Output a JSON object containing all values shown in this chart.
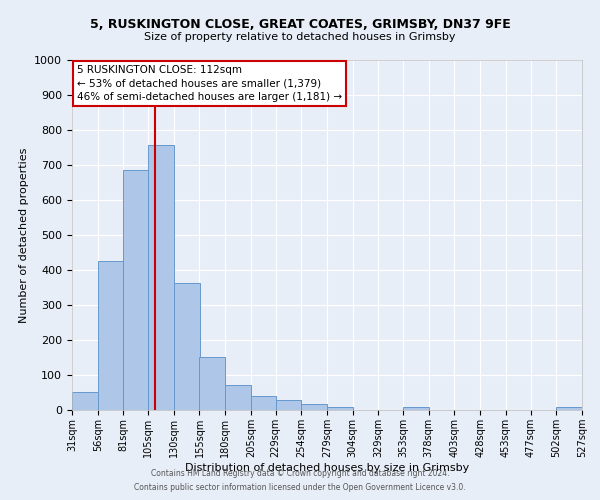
{
  "title": "5, RUSKINGTON CLOSE, GREAT COATES, GRIMSBY, DN37 9FE",
  "subtitle": "Size of property relative to detached houses in Grimsby",
  "xlabel": "Distribution of detached houses by size in Grimsby",
  "ylabel": "Number of detached properties",
  "bar_color": "#aec6e8",
  "bar_edge_color": "#6699cc",
  "bg_color": "#e8eef7",
  "grid_color": "#ffffff",
  "annotation_box_color": "#cc0000",
  "vline_color": "#cc0000",
  "vline_x": 112,
  "bin_edges": [
    31,
    56,
    81,
    105,
    130,
    155,
    180,
    205,
    229,
    254,
    279,
    304,
    329,
    353,
    378,
    403,
    428,
    453,
    477,
    502,
    527
  ],
  "bin_heights": [
    52,
    425,
    685,
    757,
    362,
    152,
    72,
    40,
    30,
    17,
    10,
    0,
    0,
    8,
    0,
    0,
    0,
    0,
    0,
    10
  ],
  "annotation_lines": [
    "5 RUSKINGTON CLOSE: 112sqm",
    "← 53% of detached houses are smaller (1,379)",
    "46% of semi-detached houses are larger (1,181) →"
  ],
  "ylim": [
    0,
    1000
  ],
  "yticks": [
    0,
    100,
    200,
    300,
    400,
    500,
    600,
    700,
    800,
    900,
    1000
  ],
  "footer1": "Contains HM Land Registry data © Crown copyright and database right 2024.",
  "footer2": "Contains public sector information licensed under the Open Government Licence v3.0."
}
